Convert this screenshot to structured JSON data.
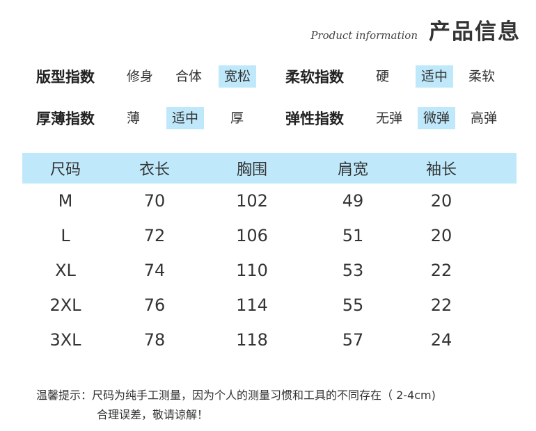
{
  "header": {
    "subtitle": "Product information",
    "title": "产品信息"
  },
  "attributes": {
    "rows": [
      [
        {
          "label": "版型指数",
          "options": [
            "修身",
            "合体",
            "宽松"
          ],
          "selected": 2
        },
        {
          "label": "柔软指数",
          "options": [
            "硬",
            "适中",
            "柔软"
          ],
          "selected": 1
        }
      ],
      [
        {
          "label": "厚薄指数",
          "options": [
            "薄",
            "适中",
            "厚"
          ],
          "selected": 1
        },
        {
          "label": "弹性指数",
          "options": [
            "无弹",
            "微弹",
            "高弹"
          ],
          "selected": 1
        }
      ]
    ]
  },
  "size_table": {
    "headers": [
      "尺码",
      "衣长",
      "胸围",
      "肩宽",
      "袖长"
    ],
    "rows": [
      [
        "M",
        "70",
        "102",
        "49",
        "20"
      ],
      [
        "L",
        "72",
        "106",
        "51",
        "20"
      ],
      [
        "XL",
        "74",
        "110",
        "53",
        "22"
      ],
      [
        "2XL",
        "76",
        "114",
        "55",
        "22"
      ],
      [
        "3XL",
        "78",
        "118",
        "57",
        "24"
      ]
    ]
  },
  "notes": {
    "line1": "温馨提示：尺码为纯手工测量，因为个人的测量习惯和工具的不同存在（ 2-4cm)",
    "line2": "合理误差，敬请谅解！"
  },
  "colors": {
    "highlight": "#bfe9fb",
    "text": "#333333"
  }
}
